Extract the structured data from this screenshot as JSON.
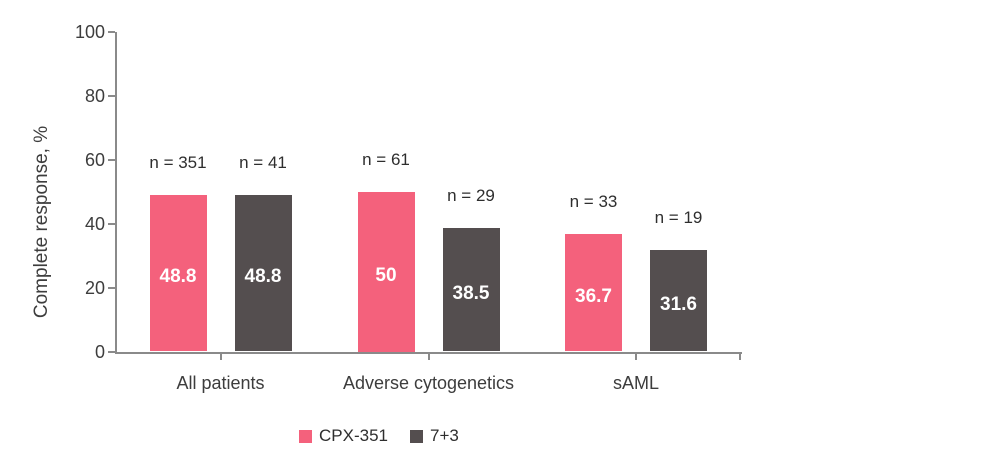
{
  "chart_data": {
    "type": "bar",
    "title": "",
    "ylabel": "Complete response, %",
    "xlabel": "",
    "ylim": [
      0,
      100
    ],
    "yticks": [
      0,
      20,
      40,
      60,
      80,
      100
    ],
    "grid": false,
    "legend_position": "bottom",
    "categories": [
      "All patients",
      "Adverse cytogenetics",
      "sAML"
    ],
    "series": [
      {
        "name": "CPX-351",
        "color": "#f4617c",
        "values": [
          48.8,
          50,
          36.7
        ],
        "value_labels": [
          "48.8",
          "50",
          "36.7"
        ],
        "n_labels": [
          "n = 351",
          "n = 61",
          "n = 33"
        ]
      },
      {
        "name": "7+3",
        "color": "#544e4f",
        "values": [
          48.8,
          38.5,
          31.6
        ],
        "value_labels": [
          "48.8",
          "38.5",
          "31.6"
        ],
        "n_labels": [
          "n = 41",
          "n = 29",
          "n = 19"
        ]
      }
    ],
    "colors": {
      "axis": "#8a8a8a",
      "tick_text": "#3d3d3d",
      "n_text": "#2e2e2e",
      "value_text": "#ffffff"
    }
  }
}
